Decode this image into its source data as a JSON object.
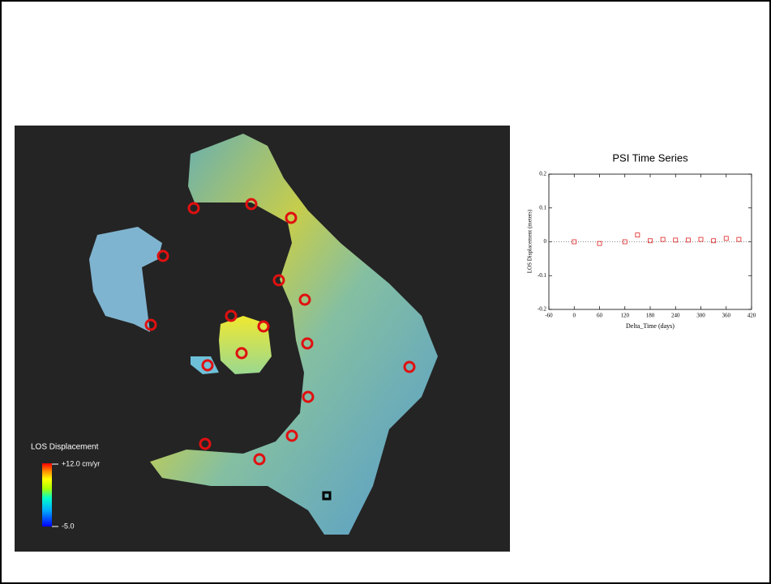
{
  "map": {
    "legend_title": "LOS Displacement",
    "legend_max": "+12.0 cm/yr",
    "legend_min": "-5.0"
  },
  "chart_data": {
    "type": "scatter",
    "title": "PSI Time Series",
    "x_label": "Delta_Time (days)",
    "y_label": "LOS Displacement (meters)",
    "x": [
      0,
      60,
      120,
      150,
      180,
      210,
      240,
      270,
      300,
      330,
      360,
      390
    ],
    "values": [
      0,
      -0.005,
      0,
      0.02,
      0.003,
      0.007,
      0.005,
      0.005,
      0.007,
      0.003,
      0.01,
      0.007
    ],
    "color": "#e02020",
    "xlim": [
      -60,
      420
    ],
    "xticks": [
      -60,
      0,
      60,
      120,
      180,
      240,
      300,
      360,
      420
    ],
    "ylim": [
      -0.2,
      0.2
    ],
    "yticks": [
      -0.2,
      -0.1,
      0,
      0.1,
      0.2
    ],
    "zero_line": true
  }
}
